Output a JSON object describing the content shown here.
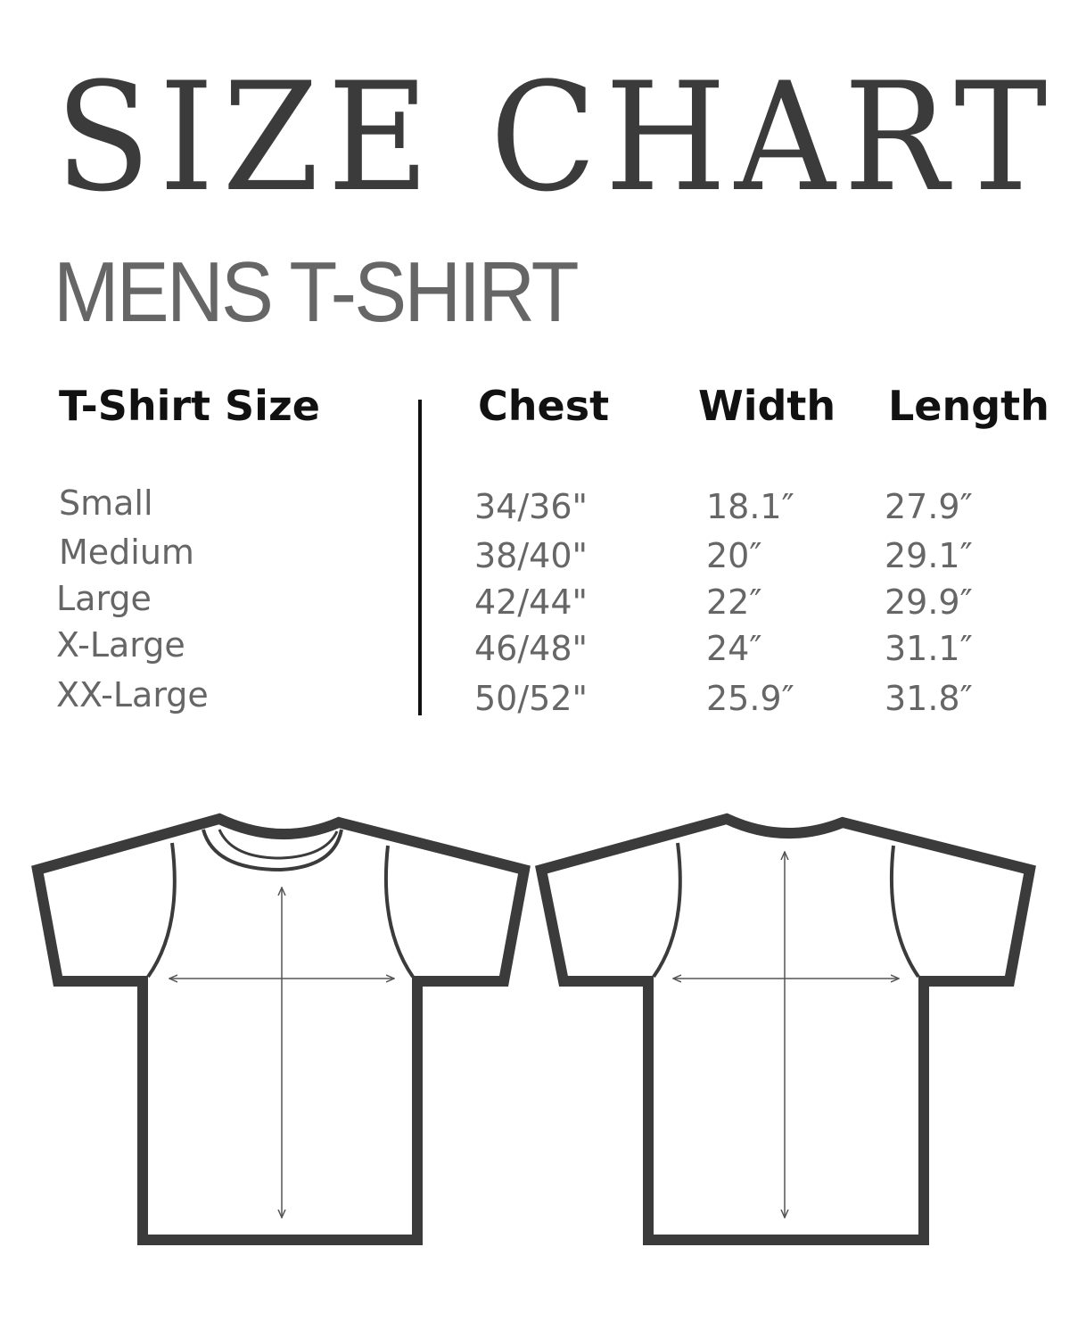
{
  "title": "SIZE CHART",
  "subtitle": "MENS T-SHIRT",
  "table": {
    "headers": [
      "T-Shirt Size",
      "Chest",
      "Width",
      "Length"
    ],
    "rows": [
      [
        "Small",
        "34/36\"",
        "18.1″",
        "27.9″"
      ],
      [
        "Medium",
        "38/40\"",
        "20″",
        "29.1″"
      ],
      [
        "Large",
        "42/44\"",
        "22″",
        "29.9″"
      ],
      [
        "X-Large",
        "46/48\"",
        "24″",
        "31.1″"
      ],
      [
        "XX-Large",
        "50/52\"",
        "25.9″",
        "31.8″"
      ]
    ]
  },
  "colors": {
    "outline": "#3b3b3b",
    "text": "#666666"
  }
}
